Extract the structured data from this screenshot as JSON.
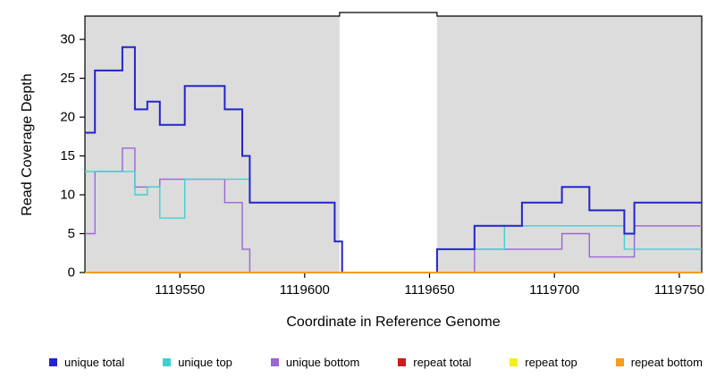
{
  "chart_data": {
    "type": "line",
    "subtype": "step",
    "title": "",
    "xlabel": "Coordinate in Reference Genome",
    "ylabel": "Read Coverage Depth",
    "xlim": [
      1119512,
      1119759
    ],
    "ylim": [
      0,
      33
    ],
    "x_ticks": [
      1119550,
      1119600,
      1119650,
      1119700,
      1119750
    ],
    "y_ticks": [
      0,
      5,
      10,
      15,
      20,
      25,
      30
    ],
    "grid": false,
    "legend_position": "bottom",
    "panel_color": "#dcdcdc",
    "background_color": "#ffffff",
    "shaded_regions": [
      {
        "x0": 1119512,
        "x1": 1119614,
        "color": "#dcdcdc"
      },
      {
        "x0": 1119653,
        "x1": 1119759,
        "color": "#dcdcdc"
      }
    ],
    "gap_region": {
      "x0": 1119614,
      "x1": 1119653
    },
    "series": [
      {
        "name": "unique total",
        "color": "#2424cd",
        "width": 2,
        "steps": [
          [
            1119512,
            18
          ],
          [
            1119516,
            26
          ],
          [
            1119527,
            29
          ],
          [
            1119532,
            21
          ],
          [
            1119537,
            22
          ],
          [
            1119542,
            19
          ],
          [
            1119552,
            24
          ],
          [
            1119568,
            21
          ],
          [
            1119575,
            15
          ],
          [
            1119578,
            9
          ],
          [
            1119612,
            4
          ],
          [
            1119615,
            0
          ],
          [
            1119653,
            3
          ],
          [
            1119668,
            6
          ],
          [
            1119687,
            9
          ],
          [
            1119703,
            11
          ],
          [
            1119714,
            8
          ],
          [
            1119728,
            5
          ],
          [
            1119732,
            9
          ]
        ]
      },
      {
        "name": "unique top",
        "color": "#3fd1d1",
        "width": 1.4,
        "steps": [
          [
            1119512,
            13
          ],
          [
            1119532,
            10
          ],
          [
            1119537,
            11
          ],
          [
            1119542,
            7
          ],
          [
            1119552,
            12
          ],
          [
            1119578,
            9
          ],
          [
            1119612,
            4
          ],
          [
            1119615,
            0
          ],
          [
            1119653,
            3
          ],
          [
            1119680,
            6
          ],
          [
            1119728,
            3
          ]
        ]
      },
      {
        "name": "unique bottom",
        "color": "#9a66d2",
        "width": 1.4,
        "steps": [
          [
            1119512,
            5
          ],
          [
            1119516,
            13
          ],
          [
            1119527,
            16
          ],
          [
            1119532,
            11
          ],
          [
            1119542,
            12
          ],
          [
            1119568,
            9
          ],
          [
            1119575,
            3
          ],
          [
            1119578,
            0
          ],
          [
            1119668,
            3
          ],
          [
            1119703,
            5
          ],
          [
            1119714,
            2
          ],
          [
            1119732,
            6
          ]
        ]
      },
      {
        "name": "repeat total",
        "color": "#cc1c1c",
        "width": 1.4,
        "steps": [
          [
            1119512,
            0
          ]
        ]
      },
      {
        "name": "repeat top",
        "color": "#f2ef1d",
        "width": 1.4,
        "steps": [
          [
            1119512,
            0
          ]
        ]
      },
      {
        "name": "repeat bottom",
        "color": "#f79c1c",
        "width": 2,
        "steps": [
          [
            1119512,
            0
          ]
        ]
      }
    ],
    "draw_order": [
      4,
      3,
      2,
      1,
      0,
      5
    ]
  }
}
